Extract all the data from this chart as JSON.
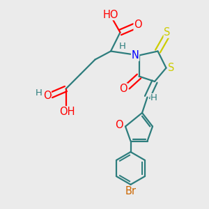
{
  "bg_color": "#ebebeb",
  "atom_colors": {
    "C": "#2d7d7d",
    "H": "#2d7d7d",
    "O": "#ff0000",
    "N": "#0000ff",
    "S": "#cccc00",
    "Br": "#cc6600"
  },
  "bond_color": "#2d7d7d",
  "bond_width": 1.6,
  "font_size": 10.5
}
